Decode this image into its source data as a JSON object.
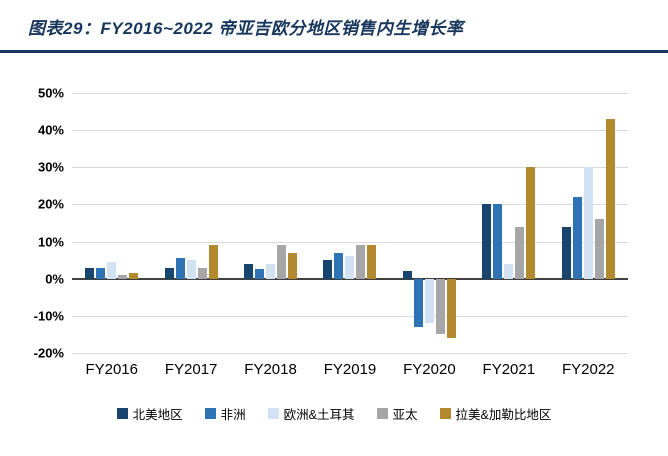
{
  "header": {
    "title": "图表29：FY2016~2022 帝亚吉欧分地区销售内生增长率"
  },
  "chart_data": {
    "type": "bar",
    "title": "FY2016~2022 帝亚吉欧分地区销售内生增长率",
    "categories": [
      "FY2016",
      "FY2017",
      "FY2018",
      "FY2019",
      "FY2020",
      "FY2021",
      "FY2022"
    ],
    "series": [
      {
        "name": "北美地区",
        "color": "#17456e",
        "values": [
          3,
          3,
          4,
          5,
          2,
          20,
          14
        ]
      },
      {
        "name": "非洲",
        "color": "#2e74b5",
        "values": [
          3,
          5.5,
          2.5,
          7,
          -13,
          20,
          22
        ]
      },
      {
        "name": "欧洲&土耳其",
        "color": "#d3e2f2",
        "values": [
          4.5,
          5,
          4,
          6,
          -12,
          4,
          30
        ]
      },
      {
        "name": "亚太",
        "color": "#a6a6a6",
        "values": [
          1,
          3,
          9,
          9,
          -15,
          14,
          16
        ]
      },
      {
        "name": "拉美&加勒比地区",
        "color": "#b2892e",
        "values": [
          1.5,
          9,
          7,
          9,
          -16,
          30,
          43
        ]
      }
    ],
    "ylim": [
      -20,
      50
    ],
    "ytick_step": 10,
    "ytick_suffix": "%",
    "grid": "horizontal",
    "legend_position": "bottom"
  }
}
